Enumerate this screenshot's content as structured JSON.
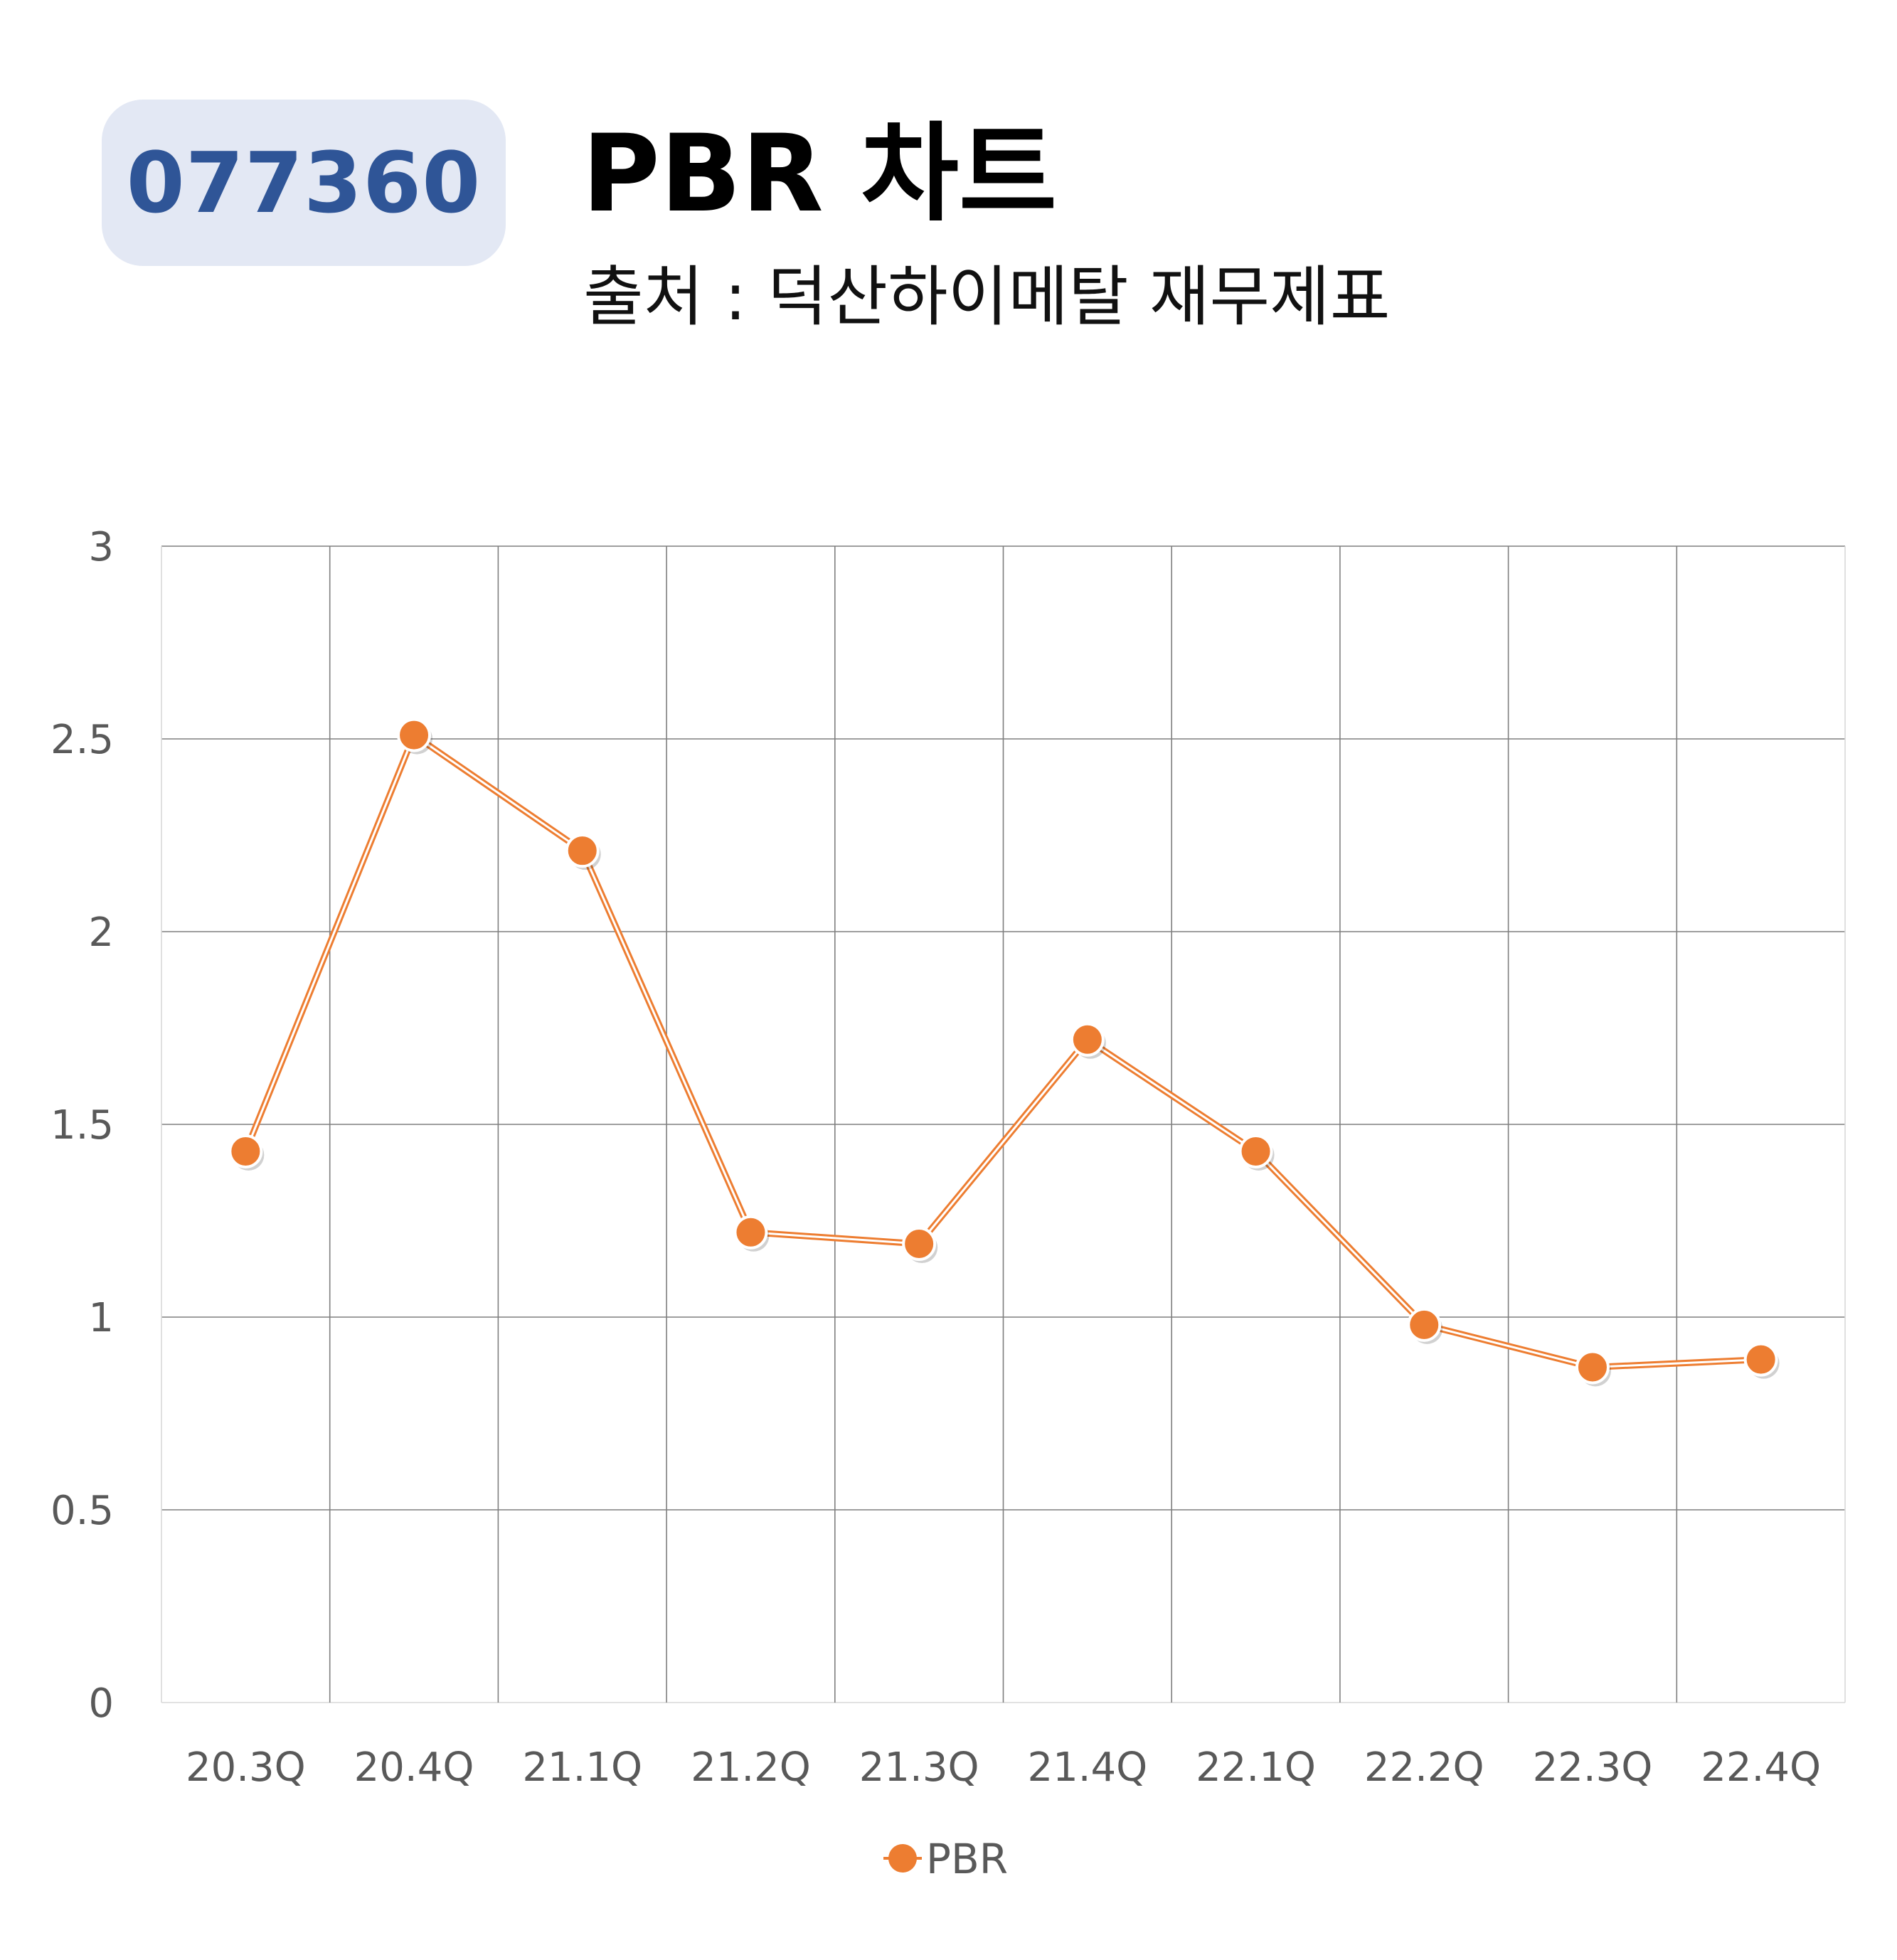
{
  "header": {
    "ticker": "077360",
    "title": "PBR 차트",
    "subtitle": "출처 : 덕산하이메탈 재무제표"
  },
  "colors": {
    "badge_bg": "#e3e8f4",
    "ticker_text": "#2f5597",
    "series": "#ed7d31",
    "grid": "#7f7f7f",
    "axis_text": "#595959"
  },
  "chart_data": {
    "type": "line",
    "title": "",
    "xlabel": "",
    "ylabel": "",
    "categories": [
      "20.3Q",
      "20.4Q",
      "21.1Q",
      "21.2Q",
      "21.3Q",
      "21.4Q",
      "22.1Q",
      "22.2Q",
      "22.3Q",
      "22.4Q"
    ],
    "series": [
      {
        "name": "PBR",
        "values": [
          1.43,
          2.51,
          2.21,
          1.22,
          1.19,
          1.72,
          1.43,
          0.98,
          0.87,
          0.89
        ]
      }
    ],
    "ylim": [
      0,
      3
    ],
    "yticks": [
      "0",
      "0.5",
      "1",
      "1.5",
      "2",
      "2.5",
      "3"
    ],
    "grid": true,
    "legend": "bottom-center",
    "marker": "circle"
  }
}
